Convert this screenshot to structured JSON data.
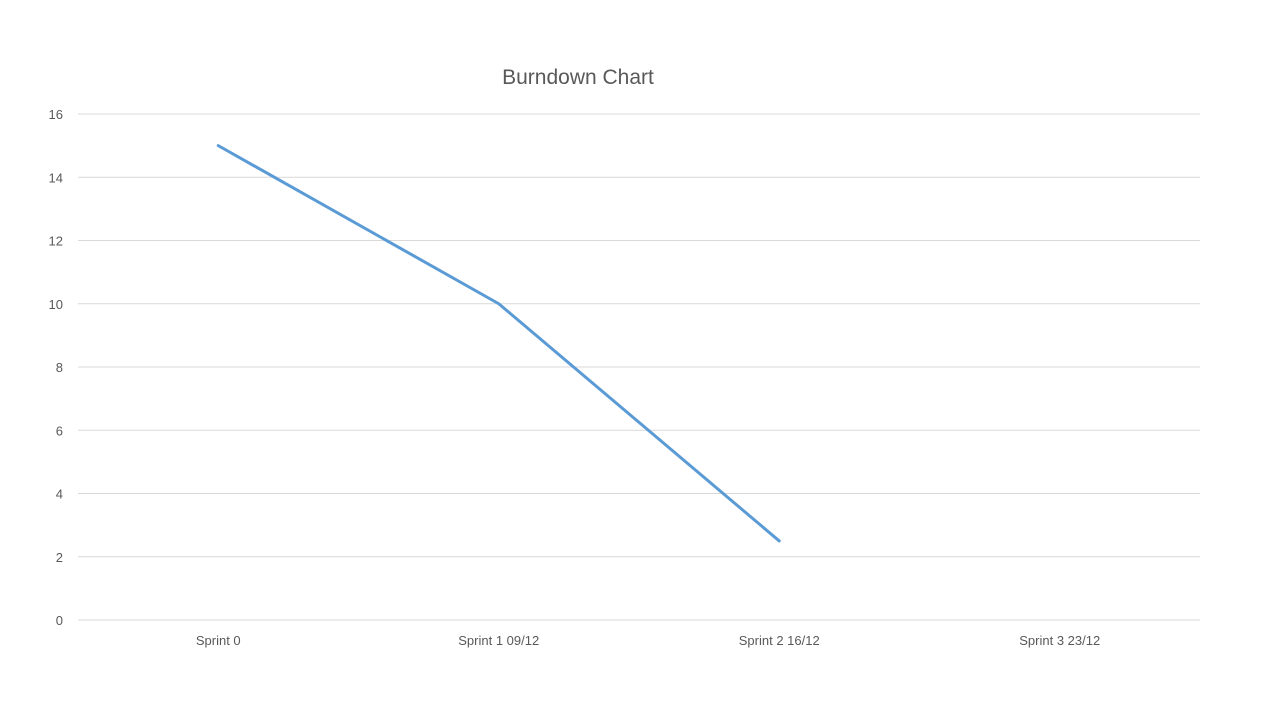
{
  "chart_data": {
    "type": "line",
    "title": "Burndown Chart",
    "xlabel": "",
    "ylabel": "",
    "categories": [
      "Sprint 0",
      "Sprint 1 09/12",
      "Sprint 2 16/12",
      "Sprint 3 23/12"
    ],
    "series": [
      {
        "values": [
          15,
          10,
          2.5,
          null
        ],
        "color": "#5B9BD5"
      }
    ],
    "ylim": [
      0,
      16
    ],
    "yticks": [
      "0",
      "2",
      "4",
      "6",
      "8",
      "10",
      "12",
      "14",
      "16"
    ],
    "grid": true,
    "legend": "none"
  }
}
